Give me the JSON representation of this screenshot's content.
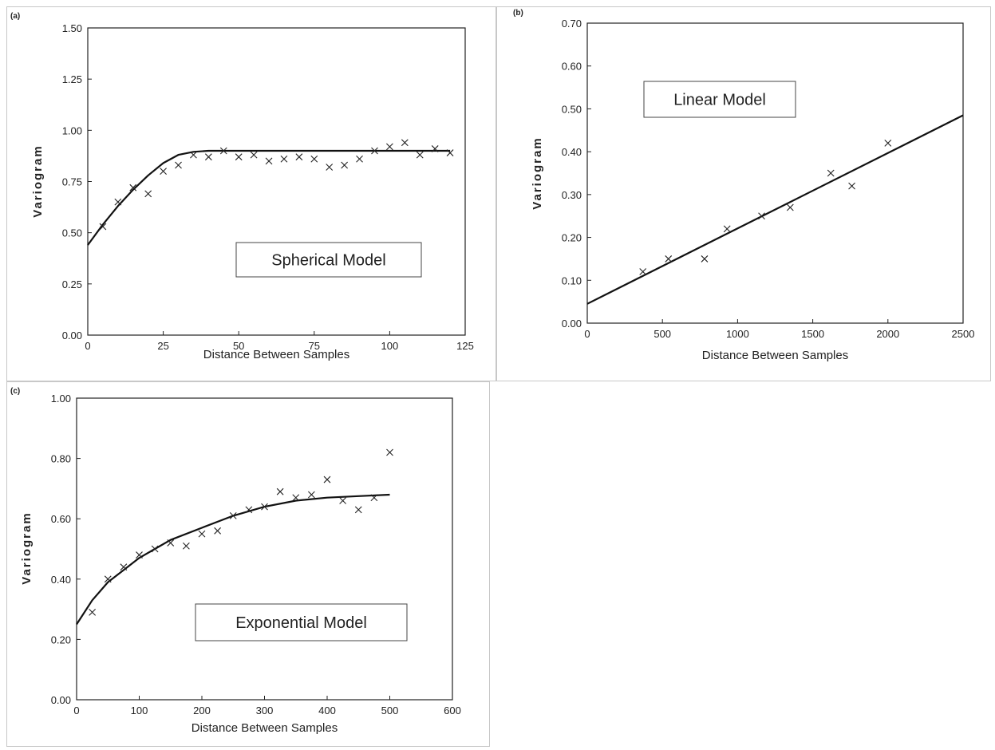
{
  "chart_data": [
    {
      "type": "scatter",
      "panel_label": "(a)",
      "xlabel": "Distance Between Samples",
      "ylabel": "Variogram",
      "annotation": "Spherical Model",
      "xlim": [
        0,
        125
      ],
      "ylim": [
        0,
        1.5
      ],
      "x_ticks": [
        "0",
        "25",
        "50",
        "75",
        "100",
        "125"
      ],
      "y_ticks": [
        "0.00",
        "0.25",
        "0.50",
        "0.75",
        "1.00",
        "1.25",
        "1.50"
      ],
      "points": {
        "x": [
          5,
          10,
          15,
          20,
          25,
          30,
          35,
          40,
          45,
          50,
          55,
          60,
          65,
          70,
          75,
          80,
          85,
          90,
          95,
          100,
          105,
          110,
          115,
          120
        ],
        "y": [
          0.53,
          0.65,
          0.72,
          0.69,
          0.8,
          0.83,
          0.88,
          0.87,
          0.9,
          0.87,
          0.88,
          0.85,
          0.86,
          0.87,
          0.86,
          0.82,
          0.83,
          0.86,
          0.9,
          0.92,
          0.94,
          0.88,
          0.91,
          0.89
        ]
      },
      "model_line": {
        "x": [
          0,
          5,
          10,
          15,
          20,
          25,
          30,
          35,
          40,
          45,
          60,
          80,
          100,
          120
        ],
        "y": [
          0.44,
          0.54,
          0.63,
          0.71,
          0.78,
          0.84,
          0.88,
          0.895,
          0.9,
          0.9,
          0.9,
          0.9,
          0.9,
          0.9
        ]
      }
    },
    {
      "type": "scatter",
      "panel_label": "(b)",
      "xlabel": "Distance Between Samples",
      "ylabel": "Variogram",
      "annotation": "Linear Model",
      "xlim": [
        0,
        2500
      ],
      "ylim": [
        0,
        0.7
      ],
      "x_ticks": [
        "0",
        "500",
        "1000",
        "1500",
        "2000",
        "2500"
      ],
      "y_ticks": [
        "0.00",
        "0.10",
        "0.20",
        "0.30",
        "0.40",
        "0.50",
        "0.60",
        "0.70"
      ],
      "points": {
        "x": [
          370,
          540,
          780,
          930,
          1160,
          1350,
          1620,
          1760,
          2000
        ],
        "y": [
          0.12,
          0.15,
          0.15,
          0.22,
          0.25,
          0.27,
          0.35,
          0.32,
          0.42
        ]
      },
      "model_line": {
        "x": [
          0,
          2500
        ],
        "y": [
          0.045,
          0.485
        ]
      }
    },
    {
      "type": "scatter",
      "panel_label": "(c)",
      "xlabel": "Distance Between Samples",
      "ylabel": "Variogram",
      "annotation": "Exponential Model",
      "xlim": [
        0,
        600
      ],
      "ylim": [
        0,
        1.0
      ],
      "x_ticks": [
        "0",
        "100",
        "200",
        "300",
        "400",
        "500",
        "600"
      ],
      "y_ticks": [
        "0.00",
        "0.20",
        "0.40",
        "0.60",
        "0.80",
        "1.00"
      ],
      "points": {
        "x": [
          25,
          50,
          75,
          100,
          125,
          150,
          175,
          200,
          225,
          250,
          275,
          300,
          325,
          350,
          375,
          400,
          425,
          450,
          475,
          500
        ],
        "y": [
          0.29,
          0.4,
          0.44,
          0.48,
          0.5,
          0.52,
          0.51,
          0.55,
          0.56,
          0.61,
          0.63,
          0.64,
          0.69,
          0.67,
          0.68,
          0.73,
          0.66,
          0.63,
          0.67,
          0.82
        ]
      },
      "model_line": {
        "x": [
          0,
          25,
          50,
          75,
          100,
          125,
          150,
          200,
          250,
          300,
          350,
          400,
          450,
          500
        ],
        "y": [
          0.25,
          0.33,
          0.39,
          0.43,
          0.47,
          0.5,
          0.53,
          0.57,
          0.61,
          0.64,
          0.66,
          0.67,
          0.675,
          0.68
        ]
      }
    }
  ]
}
